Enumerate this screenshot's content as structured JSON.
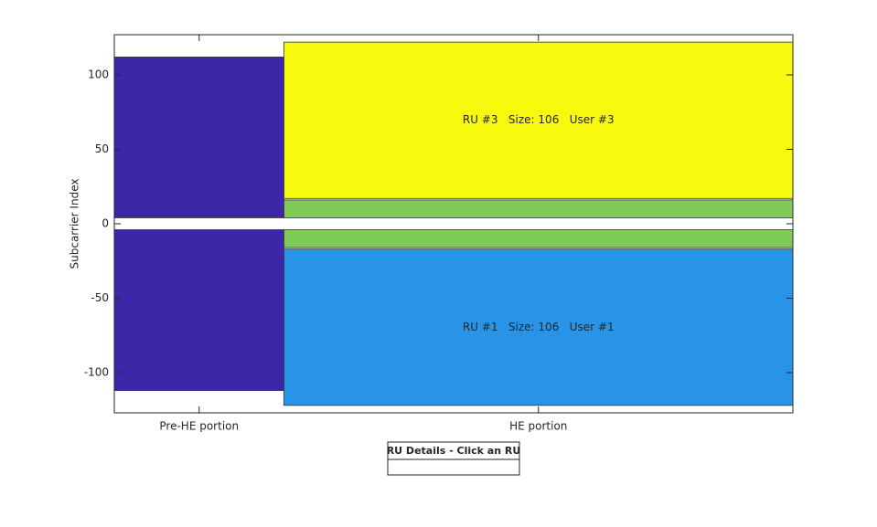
{
  "chart_data": {
    "type": "ru-map",
    "ylabel": "Subcarrier Index",
    "xlim": [
      0,
      4
    ],
    "xticks": [
      {
        "value": 0.5,
        "label": "Pre-HE portion"
      },
      {
        "value": 2.5,
        "label": "HE portion"
      }
    ],
    "ylim": [
      -127,
      127
    ],
    "yticks": [
      -100,
      -50,
      0,
      50,
      100
    ],
    "rects": [
      {
        "x": [
          0,
          1
        ],
        "y": [
          4,
          112
        ],
        "color": "#3e26a8"
      },
      {
        "x": [
          0,
          1
        ],
        "y": [
          -112,
          -4
        ],
        "color": "#3e26a8"
      },
      {
        "x": [
          1,
          4
        ],
        "y": [
          17,
          122
        ],
        "color": "#f8fa0d",
        "label": "RU #3   Size: 106   User #3"
      },
      {
        "x": [
          1,
          4
        ],
        "y": [
          4,
          16
        ],
        "color": "#80cb58"
      },
      {
        "x": [
          1,
          4
        ],
        "y": [
          -16,
          -4
        ],
        "color": "#80cb58"
      },
      {
        "x": [
          1,
          4
        ],
        "y": [
          -122,
          -17
        ],
        "color": "#2894e8",
        "label": "RU #1   Size: 106   User #1"
      }
    ],
    "info_title": "RU Details - Click an RU"
  }
}
